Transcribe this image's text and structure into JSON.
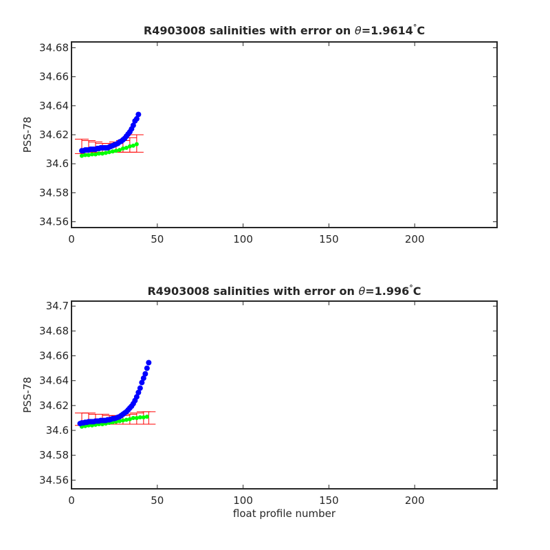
{
  "chart_data": [
    {
      "type": "scatter",
      "title_prefix": "R4903008 salinities with error on ",
      "title_symbol": "θ",
      "title_value": "=1.9614",
      "title_degree": "°",
      "title_unit": "C",
      "xlabel": "",
      "ylabel": "PSS-78",
      "xlim": [
        0,
        248
      ],
      "ylim": [
        34.556,
        34.684
      ],
      "xticks": [
        0,
        50,
        100,
        150,
        200
      ],
      "xtick_labels": [
        "0",
        "50",
        "100",
        "150",
        "200"
      ],
      "yticks": [
        34.56,
        34.58,
        34.6,
        34.62,
        34.64,
        34.66,
        34.68
      ],
      "ytick_labels": [
        "34.56",
        "34.58",
        "34.6",
        "34.62",
        "34.64",
        "34.66",
        "34.68"
      ],
      "error_bars": {
        "color": "#ff0000",
        "x": [
          6,
          10,
          14,
          18,
          22,
          26,
          30,
          34,
          38
        ],
        "low": [
          34.607,
          34.608,
          34.608,
          34.608,
          34.608,
          34.608,
          34.608,
          34.608,
          34.608
        ],
        "high": [
          34.617,
          34.616,
          34.615,
          34.614,
          34.614,
          34.615,
          34.616,
          34.618,
          34.62
        ]
      },
      "series": [
        {
          "color": "#00ff00",
          "x": [
            6,
            8,
            10,
            12,
            14,
            16,
            18,
            20,
            22,
            24,
            26,
            28,
            30,
            32,
            34,
            36,
            38
          ],
          "y": [
            34.6055,
            34.606,
            34.606,
            34.6065,
            34.6065,
            34.607,
            34.607,
            34.6075,
            34.608,
            34.6085,
            34.609,
            34.6095,
            34.6105,
            34.611,
            34.612,
            34.6125,
            34.6135
          ]
        },
        {
          "color": "#0000ff",
          "x": [
            6,
            7,
            8,
            9,
            10,
            11,
            12,
            13,
            14,
            15,
            16,
            17,
            18,
            19,
            20,
            21,
            22,
            23,
            24,
            25,
            26,
            27,
            28,
            29,
            30,
            31,
            32,
            33,
            34,
            35,
            36,
            37,
            38,
            39
          ],
          "y": [
            34.609,
            34.609,
            34.6095,
            34.6095,
            34.6095,
            34.61,
            34.61,
            34.61,
            34.61,
            34.6105,
            34.6105,
            34.611,
            34.611,
            34.611,
            34.611,
            34.611,
            34.6115,
            34.612,
            34.6125,
            34.613,
            34.6135,
            34.614,
            34.615,
            34.6155,
            34.6165,
            34.6175,
            34.619,
            34.6205,
            34.622,
            34.624,
            34.6265,
            34.6295,
            34.631,
            34.634
          ]
        }
      ]
    },
    {
      "type": "scatter",
      "title_prefix": "R4903008 salinities with error on ",
      "title_symbol": "θ",
      "title_value": "=1.996",
      "title_degree": "°",
      "title_unit": "C",
      "xlabel": "float profile number",
      "ylabel": "PSS-78",
      "xlim": [
        0,
        248
      ],
      "ylim": [
        34.553,
        34.704
      ],
      "xticks": [
        0,
        50,
        100,
        150,
        200
      ],
      "xtick_labels": [
        "0",
        "50",
        "100",
        "150",
        "200"
      ],
      "yticks": [
        34.56,
        34.58,
        34.6,
        34.62,
        34.64,
        34.66,
        34.68,
        34.7
      ],
      "ytick_labels": [
        "34.56",
        "34.58",
        "34.6",
        "34.62",
        "34.64",
        "34.66",
        "34.68",
        "34.7"
      ],
      "error_bars": {
        "color": "#ff0000",
        "x": [
          6,
          10,
          14,
          18,
          22,
          26,
          30,
          34,
          38,
          42,
          45
        ],
        "low": [
          34.604,
          34.604,
          34.605,
          34.605,
          34.605,
          34.605,
          34.605,
          34.605,
          34.605,
          34.605,
          34.605
        ],
        "high": [
          34.614,
          34.614,
          34.613,
          34.613,
          34.612,
          34.612,
          34.612,
          34.613,
          34.614,
          34.615,
          34.615
        ]
      },
      "series": [
        {
          "color": "#00ff00",
          "x": [
            6,
            8,
            10,
            12,
            14,
            16,
            18,
            20,
            22,
            24,
            26,
            28,
            30,
            32,
            34,
            36,
            38,
            40,
            42,
            44
          ],
          "y": [
            34.603,
            34.6035,
            34.604,
            34.604,
            34.6045,
            34.605,
            34.605,
            34.6055,
            34.606,
            34.6065,
            34.607,
            34.6075,
            34.608,
            34.6085,
            34.609,
            34.61,
            34.61,
            34.6105,
            34.6105,
            34.611
          ]
        },
        {
          "color": "#0000ff",
          "x": [
            5,
            6,
            7,
            8,
            9,
            10,
            11,
            12,
            13,
            14,
            15,
            16,
            17,
            18,
            19,
            20,
            21,
            22,
            23,
            24,
            25,
            26,
            27,
            28,
            29,
            30,
            31,
            32,
            33,
            34,
            35,
            36,
            37,
            38,
            39,
            40,
            41,
            42,
            43,
            44,
            45
          ],
          "y": [
            34.6055,
            34.606,
            34.606,
            34.6065,
            34.6065,
            34.607,
            34.607,
            34.607,
            34.607,
            34.6075,
            34.6075,
            34.6075,
            34.608,
            34.608,
            34.608,
            34.608,
            34.6085,
            34.6085,
            34.609,
            34.6095,
            34.6095,
            34.61,
            34.6105,
            34.611,
            34.612,
            34.613,
            34.614,
            34.615,
            34.6165,
            34.618,
            34.6195,
            34.6215,
            34.624,
            34.627,
            34.6305,
            34.634,
            34.6385,
            34.642,
            34.6455,
            34.65,
            34.6545
          ]
        }
      ]
    }
  ]
}
